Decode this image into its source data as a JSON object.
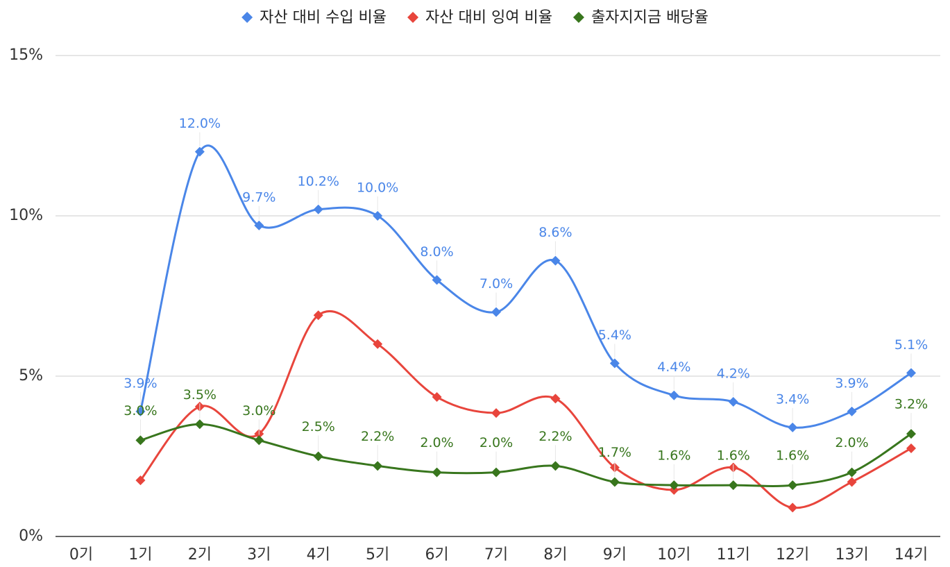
{
  "chart_data": {
    "type": "line",
    "categories": [
      "0기",
      "1기",
      "2기",
      "3기",
      "4기",
      "5기",
      "6기",
      "7기",
      "8기",
      "9기",
      "10기",
      "11기",
      "12기",
      "13기",
      "14기"
    ],
    "series": [
      {
        "name": "자산 대비 수입 비율",
        "color": "#4a86e8",
        "values": [
          null,
          3.9,
          12.0,
          9.7,
          10.2,
          10.0,
          8.0,
          7.0,
          8.6,
          5.4,
          4.4,
          4.2,
          3.4,
          3.9,
          5.1
        ],
        "value_labels": [
          null,
          "3.9%",
          "12.0%",
          "9.7%",
          "10.2%",
          "10.0%",
          "8.0%",
          "7.0%",
          "8.6%",
          "5.4%",
          "4.4%",
          "4.2%",
          "3.4%",
          "3.9%",
          "5.1%"
        ]
      },
      {
        "name": "자산 대비 잉여 비율",
        "color": "#e8453c",
        "values": [
          null,
          1.75,
          4.05,
          3.2,
          6.9,
          6.0,
          4.35,
          3.85,
          4.3,
          2.15,
          1.45,
          2.15,
          0.9,
          1.7,
          2.75
        ]
      },
      {
        "name": "출자지지금 배당율",
        "color": "#38761d",
        "values": [
          null,
          3.0,
          3.5,
          3.0,
          2.5,
          2.2,
          2.0,
          2.0,
          2.2,
          1.7,
          1.6,
          1.6,
          1.6,
          2.0,
          3.2
        ],
        "value_labels": [
          null,
          "3.0%",
          "3.5%",
          "3.0%",
          "2.5%",
          "2.2%",
          "2.0%",
          "2.0%",
          "2.2%",
          "1.7%",
          "1.6%",
          "1.6%",
          "1.6%",
          "2.0%",
          "3.2%"
        ]
      }
    ],
    "ylim": [
      0,
      15
    ],
    "yticks": [
      {
        "value": 0,
        "label": "0%"
      },
      {
        "value": 5,
        "label": "5%"
      },
      {
        "value": 10,
        "label": "10%"
      },
      {
        "value": 15,
        "label": "15%"
      }
    ],
    "grid": true,
    "legend": "top"
  }
}
